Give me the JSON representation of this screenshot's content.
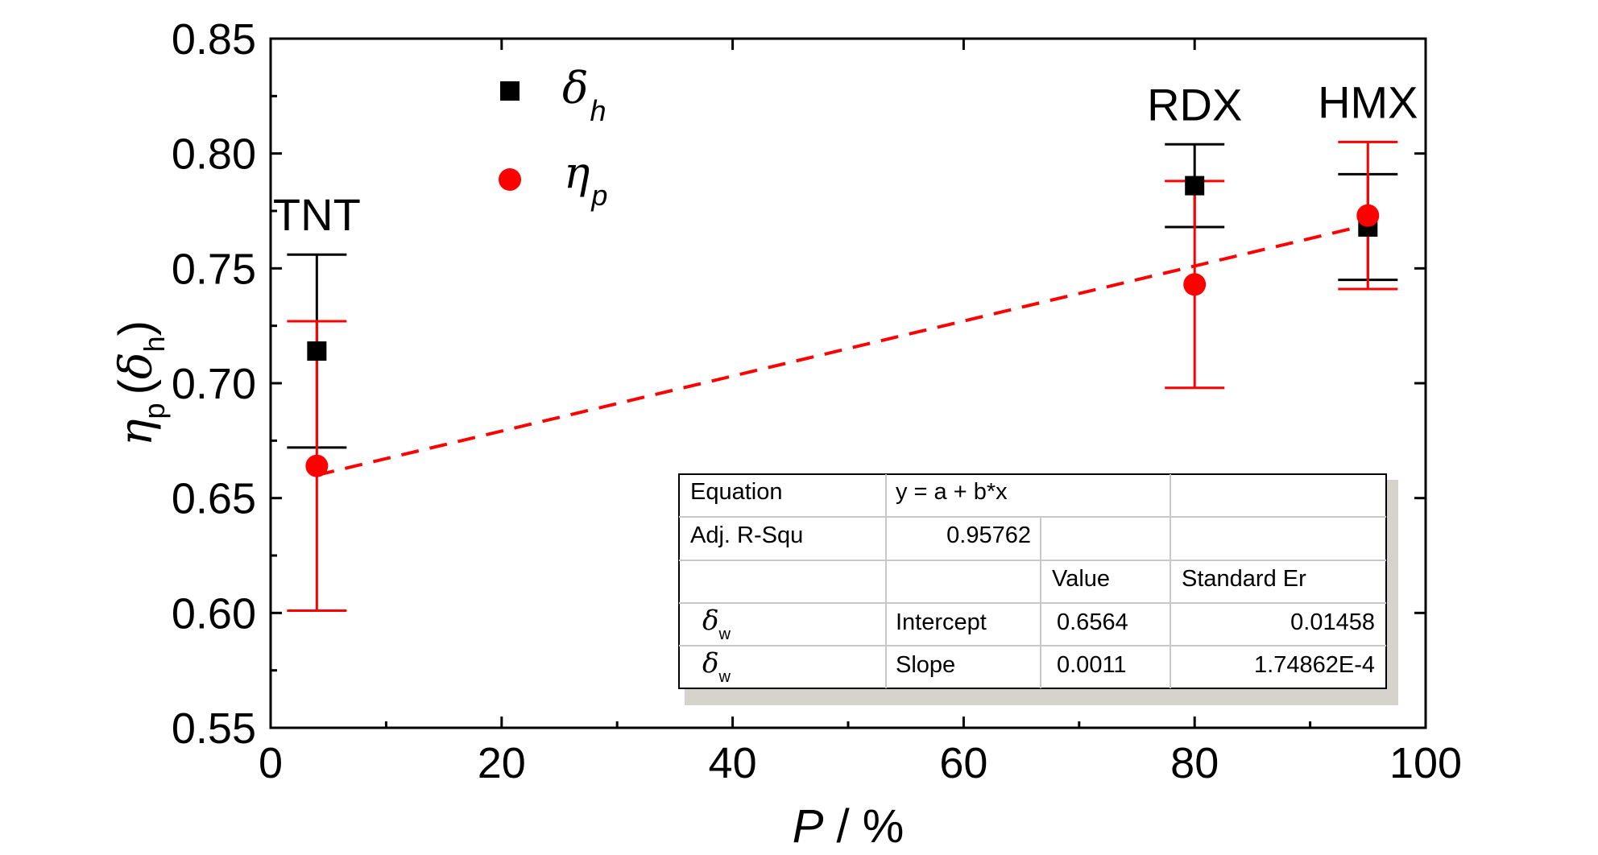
{
  "chart_data": {
    "type": "scatter",
    "xlabel_symbol": "P",
    "xlabel_unit": " / %",
    "ylabel_symbol": "η",
    "ylabel_sub": "p",
    "ylabel_paren_symbol": "δ",
    "ylabel_paren_sub": "h",
    "xlim": [
      0,
      100
    ],
    "ylim": [
      0.55,
      0.85
    ],
    "xticks": [
      0,
      20,
      40,
      60,
      80,
      100
    ],
    "xtick_labels": [
      "0",
      "20",
      "40",
      "60",
      "80",
      "100"
    ],
    "yticks": [
      0.55,
      0.6,
      0.65,
      0.7,
      0.75,
      0.8,
      0.85
    ],
    "ytick_labels": [
      "0.55",
      "0.60",
      "0.65",
      "0.70",
      "0.75",
      "0.80",
      "0.85"
    ],
    "point_labels": [
      {
        "text": "TNT",
        "x": 4
      },
      {
        "text": "RDX",
        "x": 80
      },
      {
        "text": "HMX",
        "x": 95
      }
    ],
    "series": [
      {
        "name": "δ",
        "name_sub": "h",
        "marker": "square",
        "color": "#000000",
        "points": [
          {
            "x": 4,
            "y": 0.714,
            "err_low": 0.672,
            "err_high": 0.756
          },
          {
            "x": 80,
            "y": 0.786,
            "err_low": 0.768,
            "err_high": 0.804
          },
          {
            "x": 95,
            "y": 0.768,
            "err_low": 0.745,
            "err_high": 0.791
          }
        ]
      },
      {
        "name": "η",
        "name_sub": "p",
        "marker": "circle",
        "color": "#ff0000",
        "points": [
          {
            "x": 4,
            "y": 0.664,
            "err_low": 0.601,
            "err_high": 0.727
          },
          {
            "x": 80,
            "y": 0.743,
            "err_low": 0.698,
            "err_high": 0.788
          },
          {
            "x": 95,
            "y": 0.773,
            "err_low": 0.741,
            "err_high": 0.805
          }
        ]
      }
    ],
    "fit_line": {
      "style": "dashed",
      "color": "#ff0000",
      "x": [
        4,
        95
      ],
      "y": [
        0.66,
        0.769
      ]
    },
    "fit_table": {
      "equation_label": "Equation",
      "equation_value": "y = a + b*x",
      "adj_r_label": "Adj. R-Squ",
      "adj_r_value": "0.95762",
      "col_value": "Value",
      "col_std": "Standard Er",
      "row_symbol": "δ",
      "row_sub": "w",
      "intercept_label": "Intercept",
      "intercept_value": "0.6564",
      "intercept_err": "0.01458",
      "slope_label": "Slope",
      "slope_value": "0.0011",
      "slope_err": "1.74862E-4"
    }
  }
}
